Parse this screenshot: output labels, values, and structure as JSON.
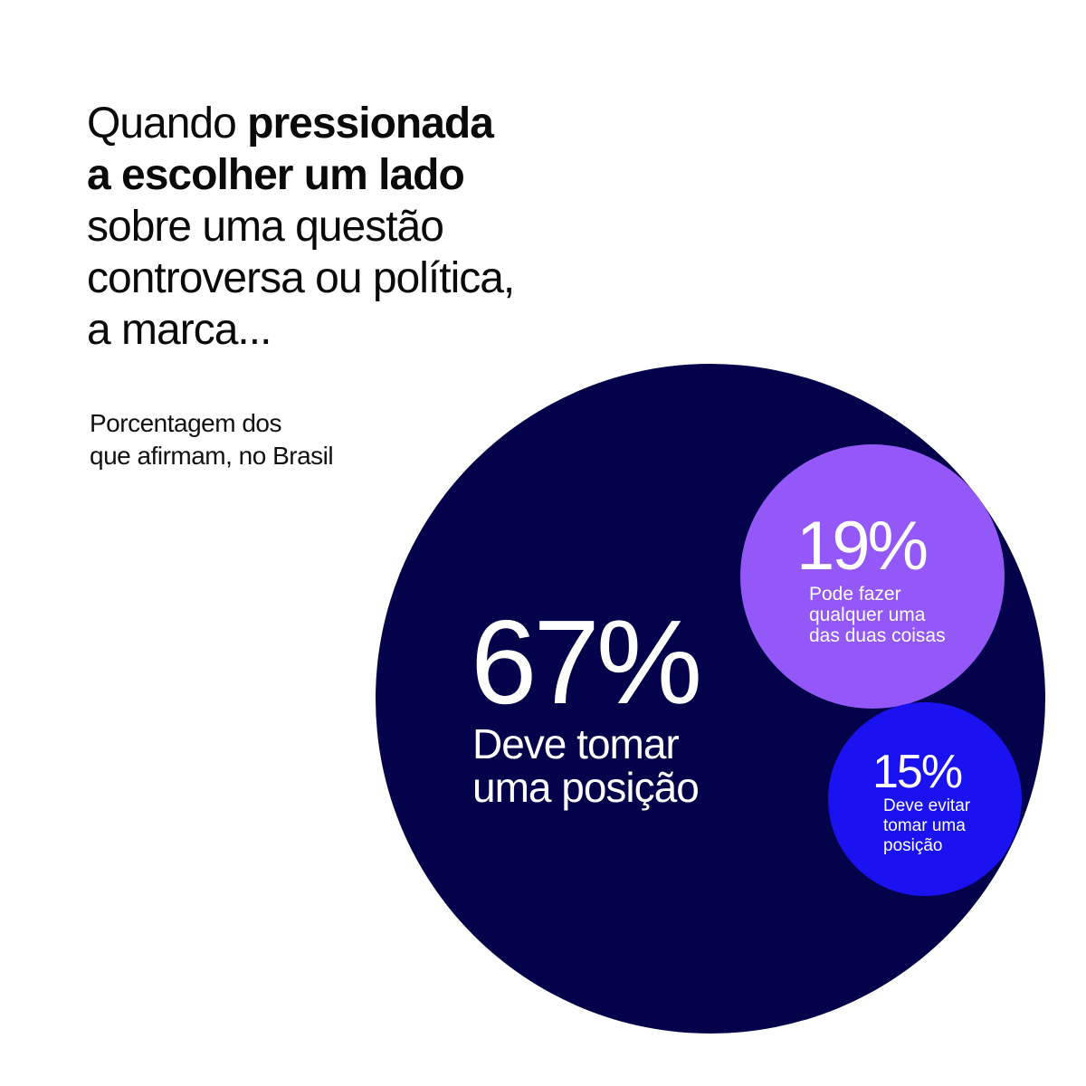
{
  "headline": {
    "line1_regular": "Quando ",
    "line1_bold": "pressionada",
    "line2_bold": "a escolher um lado",
    "line3": "sobre uma questão",
    "line4": "controversa ou política,",
    "line5": "a marca..."
  },
  "subtitle": {
    "line1": "Porcentagem dos",
    "line2": "que afirmam, no Brasil"
  },
  "colors": {
    "background": "#ffffff",
    "deve_tomar": "#03024a",
    "pode_fazer": "#9358f7",
    "deve_evitar": "#1a12f0",
    "text_on_bubble": "#ffffff"
  },
  "chart_data": {
    "type": "bubble",
    "unit": "%",
    "series": [
      {
        "name": "Deve tomar uma posição",
        "value": 67,
        "label_value": "67%",
        "label_lines": [
          "Deve tomar",
          "uma posição"
        ],
        "color": "#03024a"
      },
      {
        "name": "Pode fazer qualquer uma das duas coisas",
        "value": 19,
        "label_value": "19%",
        "label_lines": [
          "Pode fazer",
          "qualquer uma",
          "das duas coisas"
        ],
        "color": "#9358f7"
      },
      {
        "name": "Deve evitar tomar uma posição",
        "value": 15,
        "label_value": "15%",
        "label_lines": [
          "Deve evitar",
          "tomar uma",
          "posição"
        ],
        "color": "#1a12f0"
      }
    ]
  }
}
